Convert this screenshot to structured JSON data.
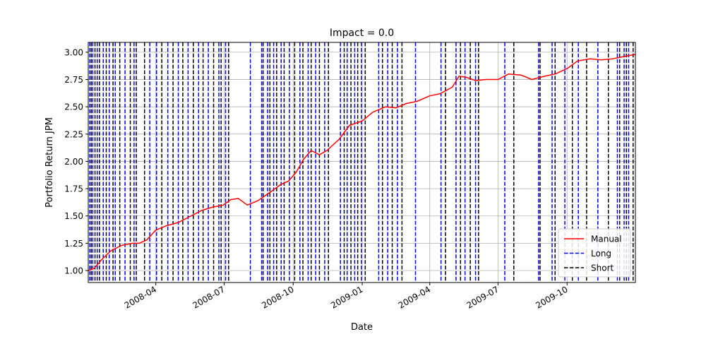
{
  "chart_data": {
    "type": "line",
    "title": "Impact = 0.0",
    "xlabel": "Date",
    "ylabel": "Portfolio Return JPM",
    "xlim": [
      "2008-01-02",
      "2009-12-31"
    ],
    "ylim": [
      0.89,
      3.09
    ],
    "grid": true,
    "legend_position": "lower-right",
    "x_ticks": [
      "2008-04",
      "2008-07",
      "2008-10",
      "2009-01",
      "2009-04",
      "2009-07",
      "2009-10"
    ],
    "x_tick_dates": [
      "2008-04-01",
      "2008-07-01",
      "2008-10-01",
      "2009-01-01",
      "2009-04-01",
      "2009-07-01",
      "2009-10-01"
    ],
    "y_ticks": [
      "1.00",
      "1.25",
      "1.50",
      "1.75",
      "2.00",
      "2.25",
      "2.50",
      "2.75",
      "3.00"
    ],
    "series": [
      {
        "name": "Manual",
        "color": "#ff0000",
        "style": "solid",
        "x": [
          "2008-01-02",
          "2008-01-10",
          "2008-01-20",
          "2008-02-01",
          "2008-02-15",
          "2008-03-01",
          "2008-03-10",
          "2008-03-20",
          "2008-04-01",
          "2008-04-15",
          "2008-05-01",
          "2008-05-15",
          "2008-06-01",
          "2008-06-15",
          "2008-06-30",
          "2008-07-10",
          "2008-07-20",
          "2008-08-01",
          "2008-08-15",
          "2008-09-01",
          "2008-09-15",
          "2008-09-25",
          "2008-10-05",
          "2008-10-15",
          "2008-10-25",
          "2008-11-05",
          "2008-11-15",
          "2008-12-01",
          "2008-12-15",
          "2009-01-01",
          "2009-01-15",
          "2009-02-01",
          "2009-02-15",
          "2009-03-01",
          "2009-03-15",
          "2009-04-01",
          "2009-04-15",
          "2009-05-01",
          "2009-05-10",
          "2009-05-20",
          "2009-06-01",
          "2009-06-15",
          "2009-07-01",
          "2009-07-15",
          "2009-08-01",
          "2009-08-15",
          "2009-09-01",
          "2009-09-15",
          "2009-10-01",
          "2009-10-15",
          "2009-11-01",
          "2009-11-15",
          "2009-12-01",
          "2009-12-15",
          "2009-12-31"
        ],
        "values": [
          1.0,
          1.02,
          1.1,
          1.18,
          1.23,
          1.25,
          1.25,
          1.28,
          1.37,
          1.41,
          1.44,
          1.49,
          1.55,
          1.58,
          1.6,
          1.65,
          1.66,
          1.6,
          1.64,
          1.72,
          1.79,
          1.82,
          1.9,
          2.02,
          2.1,
          2.06,
          2.1,
          2.2,
          2.33,
          2.37,
          2.45,
          2.5,
          2.49,
          2.53,
          2.55,
          2.6,
          2.62,
          2.68,
          2.78,
          2.77,
          2.74,
          2.75,
          2.75,
          2.8,
          2.79,
          2.75,
          2.78,
          2.8,
          2.85,
          2.92,
          2.94,
          2.93,
          2.94,
          2.96,
          2.98
        ]
      },
      {
        "name": "Long",
        "color": "#0000ff",
        "style": "dashed-vertical",
        "x": [
          "2008-01-04",
          "2008-01-08",
          "2008-01-14",
          "2008-01-22",
          "2008-01-30",
          "2008-02-07",
          "2008-02-20",
          "2008-03-03",
          "2008-03-24",
          "2008-04-02",
          "2008-04-17",
          "2008-05-01",
          "2008-05-14",
          "2008-05-28",
          "2008-06-10",
          "2008-06-24",
          "2008-07-03",
          "2008-08-05",
          "2008-08-20",
          "2008-08-28",
          "2008-09-05",
          "2008-09-15",
          "2008-09-26",
          "2008-10-10",
          "2008-10-21",
          "2008-10-31",
          "2008-11-12",
          "2008-12-03",
          "2008-12-12",
          "2008-12-22",
          "2008-12-31",
          "2009-01-23",
          "2009-02-04",
          "2009-02-17",
          "2009-03-13",
          "2009-04-16",
          "2009-05-06",
          "2009-05-18",
          "2009-06-01",
          "2009-07-10",
          "2009-08-24",
          "2009-09-11",
          "2009-09-28",
          "2009-10-16",
          "2009-11-11",
          "2009-12-07",
          "2009-12-16",
          "2009-12-22"
        ]
      },
      {
        "name": "Short",
        "color": "#000000",
        "style": "dashed-vertical",
        "x": [
          "2008-01-06",
          "2008-01-11",
          "2008-01-17",
          "2008-01-26",
          "2008-02-04",
          "2008-02-13",
          "2008-02-27",
          "2008-03-06",
          "2008-03-17",
          "2008-04-09",
          "2008-04-24",
          "2008-05-07",
          "2008-05-21",
          "2008-06-03",
          "2008-06-17",
          "2008-06-27",
          "2008-07-07",
          "2008-08-22",
          "2008-08-31",
          "2008-09-09",
          "2008-09-19",
          "2008-10-03",
          "2008-10-14",
          "2008-10-25",
          "2008-11-05",
          "2008-11-17",
          "2008-12-08",
          "2008-12-17",
          "2008-12-26",
          "2009-01-05",
          "2009-01-28",
          "2009-02-10",
          "2009-02-23",
          "2009-04-22",
          "2009-05-12",
          "2009-05-25",
          "2009-06-05",
          "2009-07-22",
          "2009-08-26",
          "2009-09-15",
          "2009-10-08",
          "2009-10-27",
          "2009-11-25",
          "2009-12-10",
          "2009-12-19",
          "2009-12-28"
        ]
      }
    ]
  }
}
